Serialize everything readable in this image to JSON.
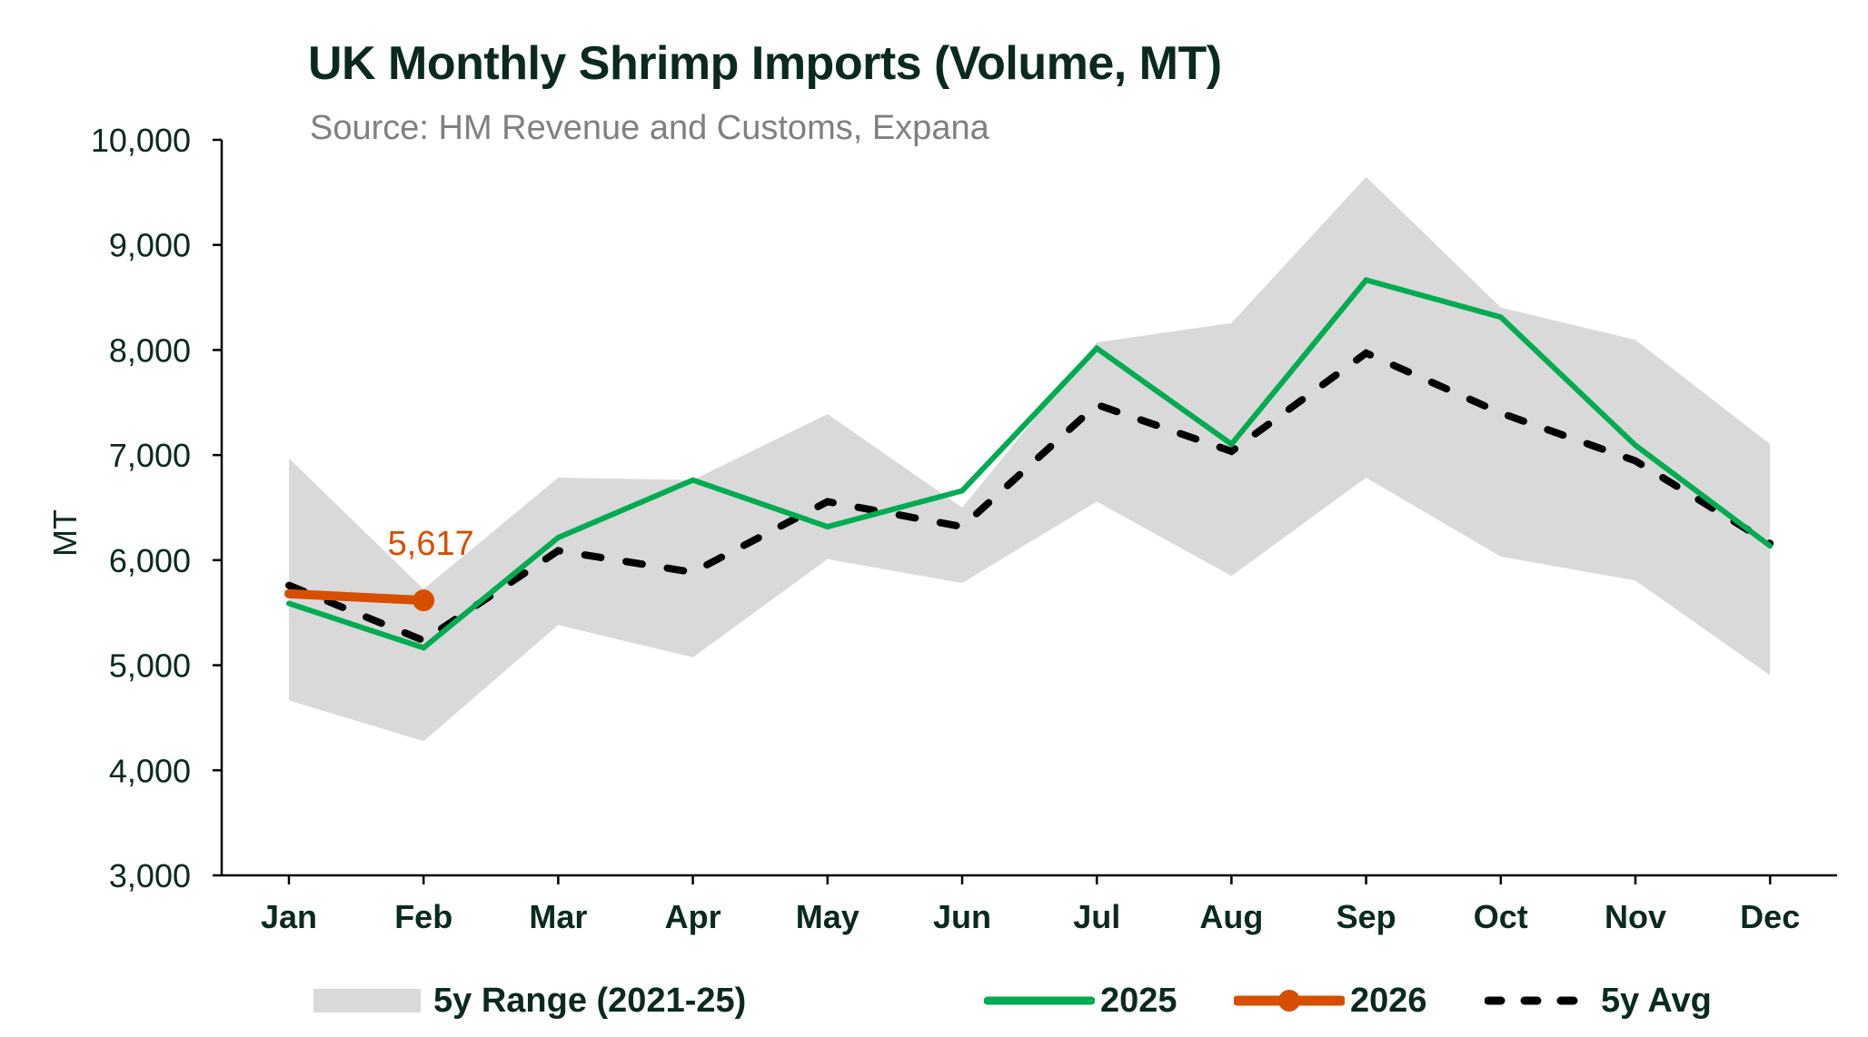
{
  "chart_data": {
    "type": "line",
    "title": "UK Monthly Shrimp Imports (Volume, MT)",
    "subtitle": "Source: HM Revenue and Customs, Expana",
    "xlabel": "",
    "ylabel": "MT",
    "ylim": [
      3000,
      10000
    ],
    "yticks": [
      3000,
      4000,
      5000,
      6000,
      7000,
      8000,
      9000,
      10000
    ],
    "ytick_labels": [
      "3,000",
      "4,000",
      "5,000",
      "6,000",
      "7,000",
      "8,000",
      "9,000",
      "10,000"
    ],
    "categories": [
      "Jan",
      "Feb",
      "Mar",
      "Apr",
      "May",
      "Jun",
      "Jul",
      "Aug",
      "Sep",
      "Oct",
      "Nov",
      "Dec"
    ],
    "grid": false,
    "legend_position": "bottom",
    "range": {
      "name": "5y Range (2021-25)",
      "color": "#d9d9d9",
      "min": [
        4665,
        4277,
        5383,
        5075,
        6010,
        5782,
        6557,
        5850,
        6785,
        6033,
        5805,
        4904
      ],
      "max": [
        6970,
        5725,
        6785,
        6762,
        7390,
        6500,
        8073,
        8256,
        9647,
        8404,
        8096,
        7104
      ]
    },
    "series": [
      {
        "name": "2025",
        "color": "#00ac4f",
        "style": "solid",
        "values": [
          5588,
          5166,
          6215,
          6762,
          6318,
          6660,
          8016,
          7104,
          8666,
          8313,
          7093,
          6135
        ]
      },
      {
        "name": "2026",
        "color": "#d64f00",
        "style": "solid-marker-last",
        "values": [
          5680,
          5617,
          null,
          null,
          null,
          null,
          null,
          null,
          null,
          null,
          null,
          null
        ]
      },
      {
        "name": "5y Avg",
        "color": "#000000",
        "style": "dashed",
        "values": [
          5760,
          5235,
          6090,
          5885,
          6557,
          6318,
          7480,
          7036,
          7971,
          7400,
          6945,
          6158
        ]
      }
    ],
    "annotations": [
      {
        "text": "5,617",
        "category": "Feb",
        "series": "2026",
        "color": "#d64f00"
      }
    ]
  },
  "legend": {
    "range_label": "5y Range (2021-25)",
    "s2025_label": "2025",
    "s2026_label": "2026",
    "avg_label": "5y Avg"
  }
}
